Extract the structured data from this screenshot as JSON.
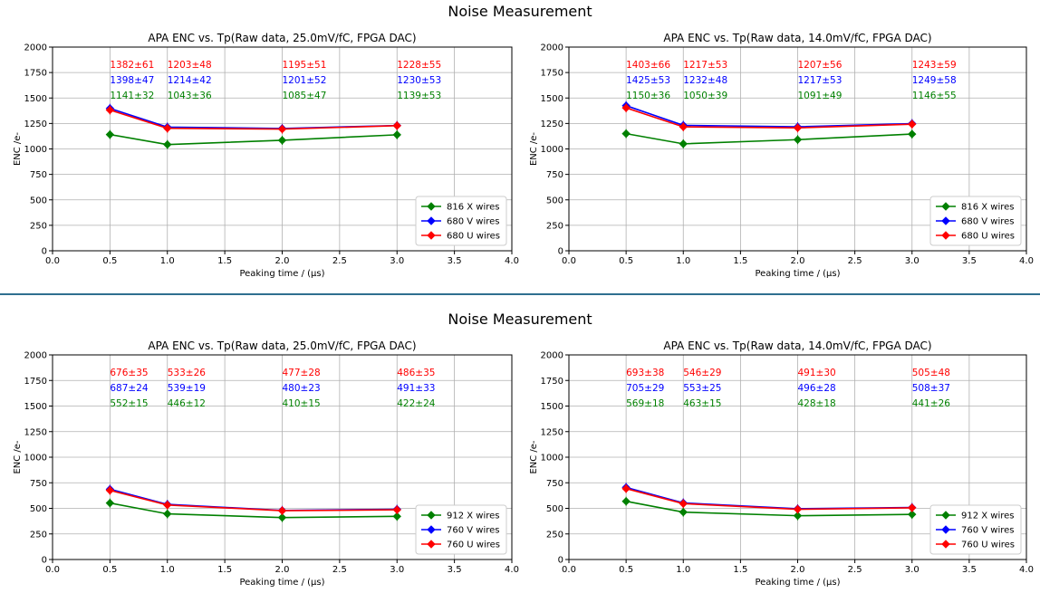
{
  "panels": [
    {
      "title": "Noise Measurement"
    },
    {
      "title": "Noise Measurement"
    }
  ],
  "chart_data": [
    {
      "type": "line",
      "title": "APA ENC vs. Tp(Raw data, 25.0mV/fC, FPGA DAC)",
      "xlabel": "Peaking time / (μs)",
      "ylabel": "ENC /e-",
      "xlim": [
        0,
        4
      ],
      "ylim": [
        0,
        2000
      ],
      "xticks": [
        "0.0",
        "0.5",
        "1.0",
        "1.5",
        "2.0",
        "2.5",
        "3.0",
        "3.5",
        "4.0"
      ],
      "yticks": [
        "0",
        "250",
        "500",
        "750",
        "1000",
        "1250",
        "1500",
        "1750",
        "2000"
      ],
      "grid": true,
      "legend_position": "lower-right",
      "x": [
        0.5,
        1.0,
        2.0,
        3.0
      ],
      "series": [
        {
          "name": "816 X wires",
          "color": "#008000",
          "values": [
            1141,
            1043,
            1085,
            1139
          ],
          "labels": [
            "1141±32",
            "1043±36",
            "1085±47",
            "1139±53"
          ]
        },
        {
          "name": "680 V wires",
          "color": "#0000ff",
          "values": [
            1398,
            1214,
            1201,
            1230
          ],
          "labels": [
            "1398±47",
            "1214±42",
            "1201±52",
            "1230±53"
          ]
        },
        {
          "name": "680 U wires",
          "color": "#ff0000",
          "values": [
            1382,
            1203,
            1195,
            1228
          ],
          "labels": [
            "1382±61",
            "1203±48",
            "1195±51",
            "1228±55"
          ]
        }
      ]
    },
    {
      "type": "line",
      "title": "APA ENC vs. Tp(Raw data, 14.0mV/fC, FPGA DAC)",
      "xlabel": "Peaking time / (μs)",
      "ylabel": "ENC /e-",
      "xlim": [
        0,
        4
      ],
      "ylim": [
        0,
        2000
      ],
      "xticks": [
        "0.0",
        "0.5",
        "1.0",
        "1.5",
        "2.0",
        "2.5",
        "3.0",
        "3.5",
        "4.0"
      ],
      "yticks": [
        "0",
        "250",
        "500",
        "750",
        "1000",
        "1250",
        "1500",
        "1750",
        "2000"
      ],
      "grid": true,
      "legend_position": "lower-right",
      "x": [
        0.5,
        1.0,
        2.0,
        3.0
      ],
      "series": [
        {
          "name": "816 X wires",
          "color": "#008000",
          "values": [
            1150,
            1050,
            1091,
            1146
          ],
          "labels": [
            "1150±36",
            "1050±39",
            "1091±49",
            "1146±55"
          ]
        },
        {
          "name": "680 V wires",
          "color": "#0000ff",
          "values": [
            1425,
            1232,
            1217,
            1249
          ],
          "labels": [
            "1425±53",
            "1232±48",
            "1217±53",
            "1249±58"
          ]
        },
        {
          "name": "680 U wires",
          "color": "#ff0000",
          "values": [
            1403,
            1217,
            1207,
            1243
          ],
          "labels": [
            "1403±66",
            "1217±53",
            "1207±56",
            "1243±59"
          ]
        }
      ]
    },
    {
      "type": "line",
      "title": "APA ENC vs. Tp(Raw data, 25.0mV/fC, FPGA DAC)",
      "xlabel": "Peaking time / (μs)",
      "ylabel": "ENC /e-",
      "xlim": [
        0,
        4
      ],
      "ylim": [
        0,
        2000
      ],
      "xticks": [
        "0.0",
        "0.5",
        "1.0",
        "1.5",
        "2.0",
        "2.5",
        "3.0",
        "3.5",
        "4.0"
      ],
      "yticks": [
        "0",
        "250",
        "500",
        "750",
        "1000",
        "1250",
        "1500",
        "1750",
        "2000"
      ],
      "grid": true,
      "legend_position": "lower-right",
      "x": [
        0.5,
        1.0,
        2.0,
        3.0
      ],
      "series": [
        {
          "name": "912 X wires",
          "color": "#008000",
          "values": [
            552,
            446,
            410,
            422
          ],
          "labels": [
            "552±15",
            "446±12",
            "410±15",
            "422±24"
          ]
        },
        {
          "name": "760 V wires",
          "color": "#0000ff",
          "values": [
            687,
            539,
            480,
            491
          ],
          "labels": [
            "687±24",
            "539±19",
            "480±23",
            "491±33"
          ]
        },
        {
          "name": "760 U wires",
          "color": "#ff0000",
          "values": [
            676,
            533,
            477,
            486
          ],
          "labels": [
            "676±35",
            "533±26",
            "477±28",
            "486±35"
          ]
        }
      ]
    },
    {
      "type": "line",
      "title": "APA ENC vs. Tp(Raw data, 14.0mV/fC, FPGA DAC)",
      "xlabel": "Peaking time / (μs)",
      "ylabel": "ENC /e-",
      "xlim": [
        0,
        4
      ],
      "ylim": [
        0,
        2000
      ],
      "xticks": [
        "0.0",
        "0.5",
        "1.0",
        "1.5",
        "2.0",
        "2.5",
        "3.0",
        "3.5",
        "4.0"
      ],
      "yticks": [
        "0",
        "250",
        "500",
        "750",
        "1000",
        "1250",
        "1500",
        "1750",
        "2000"
      ],
      "grid": true,
      "legend_position": "lower-right",
      "x": [
        0.5,
        1.0,
        2.0,
        3.0
      ],
      "series": [
        {
          "name": "912 X wires",
          "color": "#008000",
          "values": [
            569,
            463,
            428,
            441
          ],
          "labels": [
            "569±18",
            "463±15",
            "428±18",
            "441±26"
          ]
        },
        {
          "name": "760 V wires",
          "color": "#0000ff",
          "values": [
            705,
            553,
            496,
            508
          ],
          "labels": [
            "705±29",
            "553±25",
            "496±28",
            "508±37"
          ]
        },
        {
          "name": "760 U wires",
          "color": "#ff0000",
          "values": [
            693,
            546,
            491,
            505
          ],
          "labels": [
            "693±38",
            "546±29",
            "491±30",
            "505±48"
          ]
        }
      ]
    }
  ]
}
